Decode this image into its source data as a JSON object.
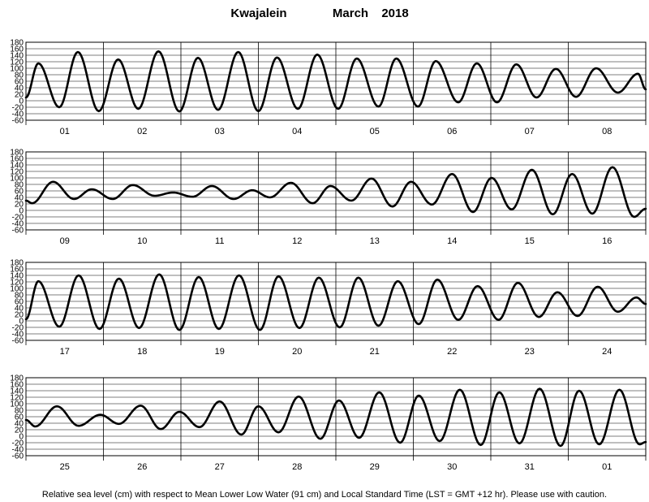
{
  "chart_data": {
    "type": "line",
    "title_station": "Kwajalein",
    "title_month": "March",
    "title_year": "2018",
    "footnote": "Relative sea level (cm) with respect to Mean Lower Low Water (91 cm) and Local Standard Time (LST = GMT +12 hr). Please use with caution.",
    "ylim": [
      -60,
      180
    ],
    "yticks": [
      180,
      160,
      140,
      120,
      100,
      80,
      60,
      40,
      20,
      0,
      -20,
      -40,
      -60
    ],
    "grid": true,
    "line_color": "#000000",
    "panels": [
      {
        "days": [
          "01",
          "02",
          "03",
          "04",
          "05",
          "06",
          "07",
          "08"
        ],
        "series": [
          {
            "t": 0.0,
            "v": 10
          },
          {
            "t": 0.16,
            "v": 115
          },
          {
            "t": 0.43,
            "v": -20
          },
          {
            "t": 0.67,
            "v": 150
          },
          {
            "t": 0.94,
            "v": -32
          },
          {
            "t": 1.19,
            "v": 127
          },
          {
            "t": 1.45,
            "v": -25
          },
          {
            "t": 1.71,
            "v": 152
          },
          {
            "t": 1.98,
            "v": -33
          },
          {
            "t": 2.22,
            "v": 132
          },
          {
            "t": 2.48,
            "v": -28
          },
          {
            "t": 2.74,
            "v": 150
          },
          {
            "t": 3.0,
            "v": -32
          },
          {
            "t": 3.24,
            "v": 133
          },
          {
            "t": 3.51,
            "v": -25
          },
          {
            "t": 3.76,
            "v": 142
          },
          {
            "t": 4.03,
            "v": -25
          },
          {
            "t": 4.27,
            "v": 130
          },
          {
            "t": 4.55,
            "v": -18
          },
          {
            "t": 4.78,
            "v": 130
          },
          {
            "t": 5.06,
            "v": -18
          },
          {
            "t": 5.29,
            "v": 122
          },
          {
            "t": 5.58,
            "v": -5
          },
          {
            "t": 5.82,
            "v": 115
          },
          {
            "t": 6.08,
            "v": -5
          },
          {
            "t": 6.33,
            "v": 112
          },
          {
            "t": 6.59,
            "v": 10
          },
          {
            "t": 6.84,
            "v": 98
          },
          {
            "t": 7.1,
            "v": 12
          },
          {
            "t": 7.36,
            "v": 100
          },
          {
            "t": 7.64,
            "v": 25
          },
          {
            "t": 7.9,
            "v": 83
          },
          {
            "t": 8.0,
            "v": 35
          }
        ]
      },
      {
        "days": [
          "09",
          "10",
          "11",
          "12",
          "13",
          "14",
          "15",
          "16"
        ],
        "series": [
          {
            "t": 0.0,
            "v": 30
          },
          {
            "t": 0.08,
            "v": 22
          },
          {
            "t": 0.35,
            "v": 88
          },
          {
            "t": 0.62,
            "v": 35
          },
          {
            "t": 0.85,
            "v": 65
          },
          {
            "t": 1.12,
            "v": 35
          },
          {
            "t": 1.38,
            "v": 78
          },
          {
            "t": 1.66,
            "v": 45
          },
          {
            "t": 1.9,
            "v": 55
          },
          {
            "t": 2.15,
            "v": 42
          },
          {
            "t": 2.4,
            "v": 75
          },
          {
            "t": 2.68,
            "v": 35
          },
          {
            "t": 2.92,
            "v": 62
          },
          {
            "t": 3.15,
            "v": 40
          },
          {
            "t": 3.42,
            "v": 85
          },
          {
            "t": 3.7,
            "v": 22
          },
          {
            "t": 3.93,
            "v": 75
          },
          {
            "t": 4.2,
            "v": 30
          },
          {
            "t": 4.46,
            "v": 98
          },
          {
            "t": 4.73,
            "v": 12
          },
          {
            "t": 4.97,
            "v": 88
          },
          {
            "t": 5.24,
            "v": 18
          },
          {
            "t": 5.5,
            "v": 112
          },
          {
            "t": 5.77,
            "v": -5
          },
          {
            "t": 6.01,
            "v": 100
          },
          {
            "t": 6.27,
            "v": 3
          },
          {
            "t": 6.53,
            "v": 125
          },
          {
            "t": 6.8,
            "v": -12
          },
          {
            "t": 7.05,
            "v": 112
          },
          {
            "t": 7.31,
            "v": -10
          },
          {
            "t": 7.57,
            "v": 133
          },
          {
            "t": 7.85,
            "v": -20
          },
          {
            "t": 8.0,
            "v": 5
          }
        ]
      },
      {
        "days": [
          "17",
          "18",
          "19",
          "20",
          "21",
          "22",
          "23",
          "24"
        ],
        "series": [
          {
            "t": 0.0,
            "v": 5
          },
          {
            "t": 0.16,
            "v": 122
          },
          {
            "t": 0.43,
            "v": -18
          },
          {
            "t": 0.68,
            "v": 140
          },
          {
            "t": 0.95,
            "v": -25
          },
          {
            "t": 1.2,
            "v": 130
          },
          {
            "t": 1.46,
            "v": -22
          },
          {
            "t": 1.72,
            "v": 143
          },
          {
            "t": 1.98,
            "v": -28
          },
          {
            "t": 2.23,
            "v": 135
          },
          {
            "t": 2.49,
            "v": -25
          },
          {
            "t": 2.75,
            "v": 140
          },
          {
            "t": 3.02,
            "v": -28
          },
          {
            "t": 3.26,
            "v": 137
          },
          {
            "t": 3.53,
            "v": -22
          },
          {
            "t": 3.78,
            "v": 133
          },
          {
            "t": 4.05,
            "v": -20
          },
          {
            "t": 4.29,
            "v": 133
          },
          {
            "t": 4.55,
            "v": -15
          },
          {
            "t": 4.8,
            "v": 122
          },
          {
            "t": 5.07,
            "v": -10
          },
          {
            "t": 5.31,
            "v": 127
          },
          {
            "t": 5.58,
            "v": 3
          },
          {
            "t": 5.83,
            "v": 107
          },
          {
            "t": 6.1,
            "v": 3
          },
          {
            "t": 6.35,
            "v": 117
          },
          {
            "t": 6.62,
            "v": 12
          },
          {
            "t": 6.86,
            "v": 88
          },
          {
            "t": 7.12,
            "v": 15
          },
          {
            "t": 7.38,
            "v": 105
          },
          {
            "t": 7.64,
            "v": 28
          },
          {
            "t": 7.88,
            "v": 72
          },
          {
            "t": 8.0,
            "v": 52
          }
        ]
      },
      {
        "days": [
          "25",
          "26",
          "27",
          "28",
          "29",
          "30",
          "31",
          "01"
        ],
        "series": [
          {
            "t": 0.0,
            "v": 50
          },
          {
            "t": 0.12,
            "v": 30
          },
          {
            "t": 0.4,
            "v": 92
          },
          {
            "t": 0.68,
            "v": 32
          },
          {
            "t": 0.96,
            "v": 66
          },
          {
            "t": 1.2,
            "v": 38
          },
          {
            "t": 1.48,
            "v": 94
          },
          {
            "t": 1.74,
            "v": 22
          },
          {
            "t": 1.98,
            "v": 75
          },
          {
            "t": 2.24,
            "v": 28
          },
          {
            "t": 2.5,
            "v": 107
          },
          {
            "t": 2.78,
            "v": 5
          },
          {
            "t": 3.0,
            "v": 92
          },
          {
            "t": 3.26,
            "v": 12
          },
          {
            "t": 3.52,
            "v": 122
          },
          {
            "t": 3.8,
            "v": -8
          },
          {
            "t": 4.04,
            "v": 110
          },
          {
            "t": 4.3,
            "v": -5
          },
          {
            "t": 4.56,
            "v": 135
          },
          {
            "t": 4.83,
            "v": -20
          },
          {
            "t": 5.07,
            "v": 125
          },
          {
            "t": 5.34,
            "v": -15
          },
          {
            "t": 5.6,
            "v": 143
          },
          {
            "t": 5.87,
            "v": -27
          },
          {
            "t": 6.11,
            "v": 135
          },
          {
            "t": 6.37,
            "v": -22
          },
          {
            "t": 6.63,
            "v": 146
          },
          {
            "t": 6.9,
            "v": -30
          },
          {
            "t": 7.14,
            "v": 140
          },
          {
            "t": 7.4,
            "v": -25
          },
          {
            "t": 7.66,
            "v": 143
          },
          {
            "t": 7.92,
            "v": -25
          },
          {
            "t": 8.0,
            "v": -18
          }
        ]
      }
    ]
  }
}
